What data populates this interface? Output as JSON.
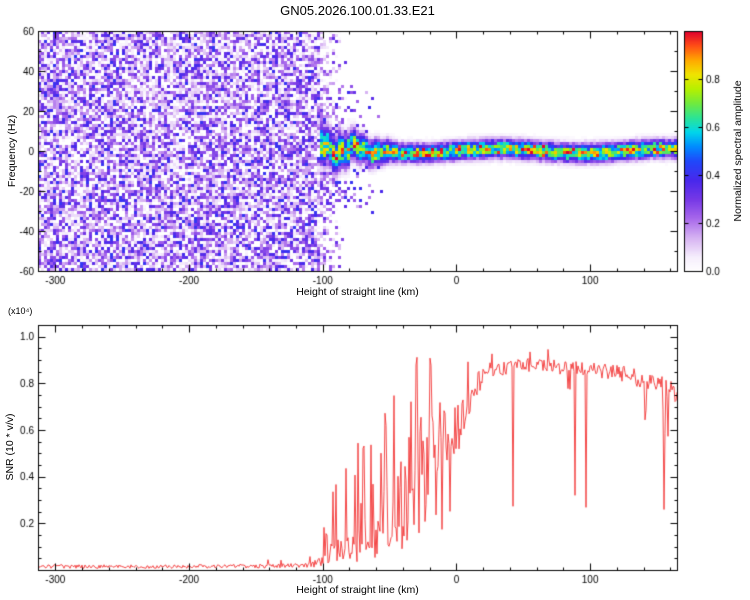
{
  "figure": {
    "title": "GN05.2026.100.01.33.E21",
    "background": "#ffffff"
  },
  "chart_data": [
    {
      "type": "heatmap",
      "panel": "spectrogram",
      "xlabel": "Height of straight line (km)",
      "ylabel": "Frequency (Hz)",
      "xlim": [
        -313,
        165
      ],
      "ylim": [
        -60,
        60
      ],
      "xtick_values": [
        -300,
        -200,
        -100,
        0,
        100
      ],
      "xtick_labels": [
        "-300",
        "-200",
        "-100",
        "0",
        "100"
      ],
      "xminor_step": 20,
      "ytick_values": [
        -60,
        -40,
        -20,
        0,
        20,
        40,
        60
      ],
      "ytick_labels": [
        "-60",
        "-40",
        "-20",
        "0",
        "20",
        "40",
        "60"
      ],
      "yminor_step": 10,
      "colorbar": {
        "label": "Normalized spectral amplitude",
        "tick_values": [
          0.0,
          0.2,
          0.4,
          0.6,
          0.8
        ],
        "tick_labels": [
          "0.0",
          "0.2",
          "0.4",
          "0.6",
          "0.8"
        ],
        "range": [
          0,
          1
        ],
        "colormap": "white-violet-purple-blue-cyan-green-yellow-orange-red rainbow"
      },
      "content": {
        "noise_region": {
          "x_range": [
            -313,
            -101
          ],
          "amplitude_range": [
            0,
            0.4
          ],
          "description": "incoherent purple speckle noise filling all frequencies up to about -100 km"
        },
        "echo_band": {
          "x_range": [
            -101,
            165
          ],
          "center_frequency_hz": 0,
          "halfwidth_hz_start": 14,
          "halfwidth_hz_end": 6.5,
          "core_amplitude_range": [
            0.6,
            1.0
          ],
          "description": "coherent echo band centered near 0 Hz; broad, wavy and turbulent from -100 to -40 km, then narrow and stable to the right edge with sporadic red (amplitude ~1) dots at the core"
        }
      }
    },
    {
      "type": "line",
      "panel": "snr",
      "xlabel": "Height of straight line (km)",
      "ylabel": "SNR (10 * v/v)",
      "ylabel_multiplier": "(x10⁴)",
      "xlim": [
        -313,
        165
      ],
      "ylim": [
        0,
        1.05
      ],
      "xtick_values": [
        -300,
        -200,
        -100,
        0,
        100
      ],
      "xtick_labels": [
        "-300",
        "-200",
        "-100",
        "0",
        "100"
      ],
      "xminor_step": 20,
      "ytick_values": [
        0.2,
        0.4,
        0.6,
        0.8,
        1.0
      ],
      "ytick_labels": [
        "0.2",
        "0.4",
        "0.6",
        "0.8",
        "1.0"
      ],
      "yminor_step": 0.05,
      "line_color": "#f23434",
      "profile_anchors": [
        {
          "x": -313,
          "y": 0.015,
          "noise": 0.008,
          "spike_prob": 0.0,
          "spike_max": 0.03,
          "dip_prob": 0.0
        },
        {
          "x": -180,
          "y": 0.015,
          "noise": 0.008,
          "spike_prob": 0.02,
          "spike_max": 0.04,
          "dip_prob": 0.0
        },
        {
          "x": -110,
          "y": 0.02,
          "noise": 0.01,
          "spike_prob": 0.05,
          "spike_max": 0.06,
          "dip_prob": 0.0
        },
        {
          "x": -103,
          "y": 0.03,
          "noise": 0.02,
          "spike_prob": 0.2,
          "spike_max": 0.12,
          "dip_prob": 0.0
        },
        {
          "x": -97,
          "y": 0.06,
          "noise": 0.04,
          "spike_prob": 0.35,
          "spike_max": 0.3,
          "dip_prob": 0.1
        },
        {
          "x": -88,
          "y": 0.09,
          "noise": 0.05,
          "spike_prob": 0.4,
          "spike_max": 0.5,
          "dip_prob": 0.15
        },
        {
          "x": -75,
          "y": 0.1,
          "noise": 0.06,
          "spike_prob": 0.4,
          "spike_max": 0.55,
          "dip_prob": 0.2
        },
        {
          "x": -62,
          "y": 0.15,
          "noise": 0.08,
          "spike_prob": 0.4,
          "spike_max": 0.7,
          "dip_prob": 0.2
        },
        {
          "x": -50,
          "y": 0.22,
          "noise": 0.12,
          "spike_prob": 0.4,
          "spike_max": 0.9,
          "dip_prob": 0.25
        },
        {
          "x": -38,
          "y": 0.3,
          "noise": 0.15,
          "spike_prob": 0.45,
          "spike_max": 0.97,
          "dip_prob": 0.25
        },
        {
          "x": -25,
          "y": 0.42,
          "noise": 0.17,
          "spike_prob": 0.45,
          "spike_max": 1.0,
          "dip_prob": 0.25
        },
        {
          "x": -14,
          "y": 0.52,
          "noise": 0.16,
          "spike_prob": 0.4,
          "spike_max": 1.0,
          "dip_prob": 0.2
        },
        {
          "x": -5,
          "y": 0.58,
          "noise": 0.12,
          "spike_prob": 0.3,
          "spike_max": 0.95,
          "dip_prob": 0.15
        },
        {
          "x": 3,
          "y": 0.62,
          "noise": 0.1,
          "spike_prob": 0.2,
          "spike_max": 0.9,
          "dip_prob": 0.1
        },
        {
          "x": 12,
          "y": 0.76,
          "noise": 0.06,
          "spike_prob": 0.1,
          "spike_max": 0.92,
          "dip_prob": 0.05
        },
        {
          "x": 22,
          "y": 0.85,
          "noise": 0.035,
          "spike_prob": 0.06,
          "spike_max": 0.95,
          "dip_prob": 0.03
        },
        {
          "x": 45,
          "y": 0.88,
          "noise": 0.03,
          "spike_prob": 0.05,
          "spike_max": 0.95,
          "dip_prob": 0.03
        },
        {
          "x": 70,
          "y": 0.88,
          "noise": 0.03,
          "spike_prob": 0.05,
          "spike_max": 0.95,
          "dip_prob": 0.03
        },
        {
          "x": 88,
          "y": 0.87,
          "noise": 0.03,
          "spike_prob": 0.1,
          "spike_max": 0.65,
          "dip_prob": 0.04
        },
        {
          "x": 100,
          "y": 0.86,
          "noise": 0.03,
          "spike_prob": 0.05,
          "spike_max": 0.7,
          "dip_prob": 0.03
        },
        {
          "x": 125,
          "y": 0.84,
          "noise": 0.035,
          "spike_prob": 0.06,
          "spike_max": 0.68,
          "dip_prob": 0.04
        },
        {
          "x": 150,
          "y": 0.8,
          "noise": 0.04,
          "spike_prob": 0.1,
          "spike_max": 0.6,
          "dip_prob": 0.05
        },
        {
          "x": 165,
          "y": 0.76,
          "noise": 0.05,
          "spike_prob": 0.15,
          "spike_max": 0.55,
          "dip_prob": 0.08
        }
      ]
    }
  ]
}
